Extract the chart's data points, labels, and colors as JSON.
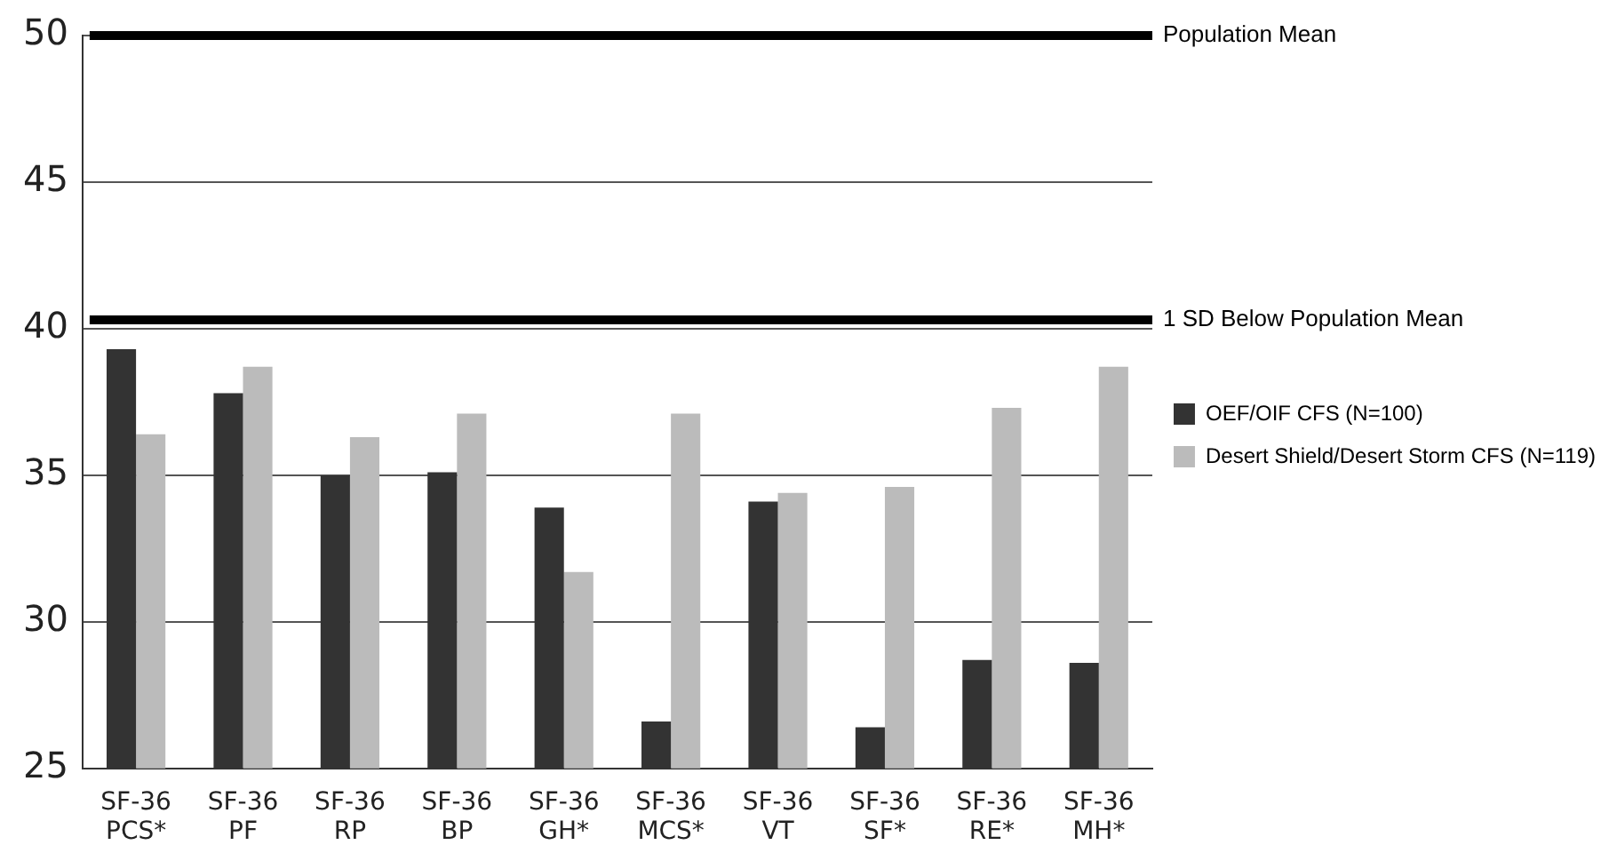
{
  "chart_data": {
    "type": "bar",
    "categories": [
      "SF-36\nPCS*",
      "SF-36\nPF",
      "SF-36\nRP",
      "SF-36\nBP",
      "SF-36\nGH*",
      "SF-36\nMCS*",
      "SF-36\nVT",
      "SF-36\nSF*",
      "SF-36\nRE*",
      "SF-36\nMH*"
    ],
    "series": [
      {
        "name": "OEF/OIF CFS (N=100)",
        "color": "#333333",
        "values": [
          39.3,
          37.8,
          35.0,
          35.1,
          33.9,
          26.6,
          34.1,
          26.4,
          28.7,
          28.6
        ]
      },
      {
        "name": "Desert Shield/Desert Storm CFS (N=119)",
        "color": "#bbbbbb",
        "values": [
          36.4,
          38.7,
          36.3,
          37.1,
          31.7,
          37.1,
          34.4,
          34.6,
          37.3,
          38.7
        ]
      }
    ],
    "ylim": [
      25,
      50
    ],
    "yticks": [
      25,
      30,
      35,
      40,
      45,
      50
    ],
    "grid": "y",
    "legend": "right",
    "ref_lines": [
      {
        "axis": "y",
        "value": 50,
        "label": "Population Mean",
        "color": "#000000"
      },
      {
        "axis": "y",
        "value": 40.3,
        "label": "1 SD Below Population Mean",
        "color": "#000000"
      }
    ]
  }
}
